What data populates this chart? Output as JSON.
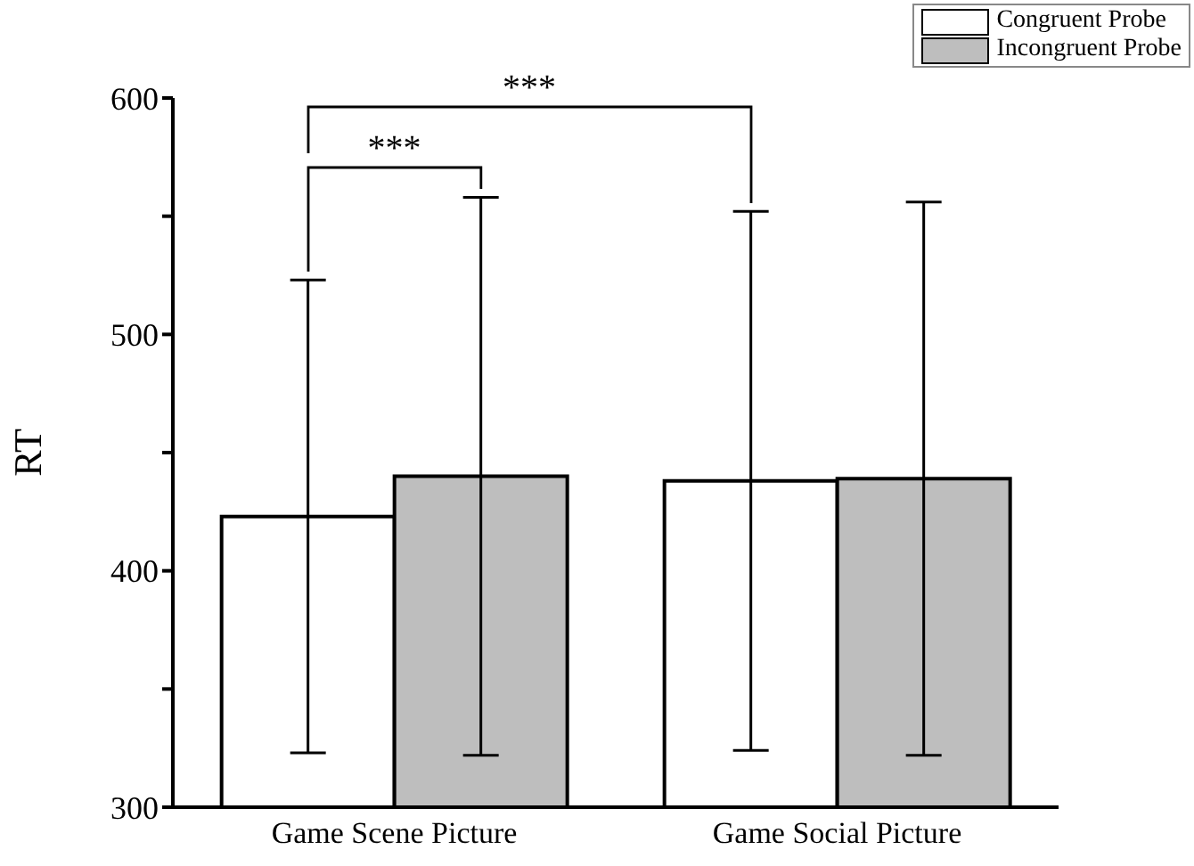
{
  "chart_data": {
    "type": "bar",
    "ylabel": "RT",
    "categories": [
      "Game Scene Picture",
      "Game Social Picture"
    ],
    "series": [
      {
        "name": "Congruent Probe",
        "color": "#ffffff",
        "values": [
          423,
          438
        ],
        "errors": [
          100,
          114
        ]
      },
      {
        "name": "Incongruent Probe",
        "color": "#bebebe",
        "values": [
          440,
          439
        ],
        "errors": [
          118,
          117
        ]
      }
    ],
    "ylim": [
      300,
      600
    ],
    "yticks": [
      300,
      {
        "value": 350,
        "label": null
      },
      400,
      {
        "value": 450,
        "label": null
      },
      500,
      {
        "value": 550,
        "label": null
      },
      600
    ],
    "legend": "top right",
    "annotations": [
      "***",
      "***"
    ]
  }
}
